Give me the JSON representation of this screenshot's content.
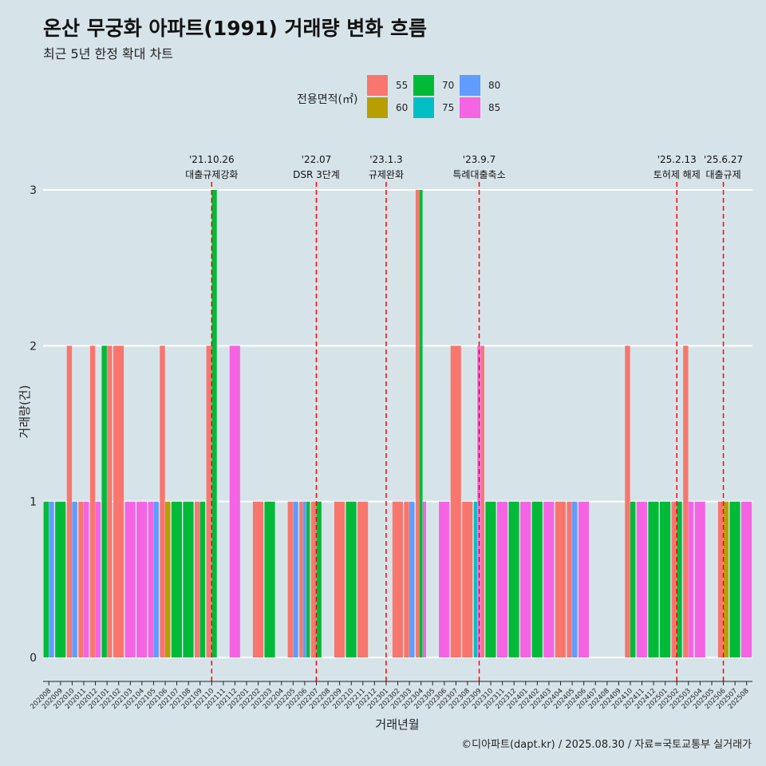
{
  "title": "온산 무궁화 아파트(1991) 거래량 변화 흐름",
  "subtitle": "최근 5년 한정 확대 차트",
  "credit": "©디아파트(dapt.kr) / 2025.08.30 / 자료=국토교통부 실거래가",
  "colors": {
    "55": "#f8766d",
    "60": "#b79f00",
    "70": "#00ba38",
    "75": "#00bfc4",
    "80": "#619cff",
    "85": "#f564e3",
    "vline": "#ff0000"
  },
  "chart_data": {
    "type": "bar",
    "xlabel": "거래년월",
    "ylabel": "거래량(건)",
    "ylim": [
      0,
      3
    ],
    "yticks": [
      0,
      1,
      2,
      3
    ],
    "legend": {
      "title": "전용면적(㎡)",
      "entries": [
        "55",
        "60",
        "70",
        "75",
        "80",
        "85"
      ],
      "position": "top"
    },
    "categories": [
      "202008",
      "202009",
      "202010",
      "202011",
      "202012",
      "202101",
      "202102",
      "202103",
      "202104",
      "202105",
      "202106",
      "202107",
      "202108",
      "202109",
      "202110",
      "202111",
      "202112",
      "202201",
      "202202",
      "202203",
      "202204",
      "202205",
      "202206",
      "202207",
      "202208",
      "202209",
      "202210",
      "202211",
      "202212",
      "202301",
      "202302",
      "202303",
      "202304",
      "202305",
      "202306",
      "202307",
      "202308",
      "202309",
      "202310",
      "202311",
      "202312",
      "202401",
      "202402",
      "202403",
      "202404",
      "202405",
      "202406",
      "202407",
      "202408",
      "202409",
      "202410",
      "202411",
      "202412",
      "202501",
      "202502",
      "202503",
      "202504",
      "202505",
      "202506",
      "202507",
      "202508"
    ],
    "bars": [
      {
        "month": "202008",
        "segments": [
          {
            "area": "70",
            "value": 1
          },
          {
            "area": "80",
            "value": 1
          }
        ]
      },
      {
        "month": "202009",
        "segments": [
          {
            "area": "70",
            "value": 1
          }
        ]
      },
      {
        "month": "202010",
        "segments": [
          {
            "area": "55",
            "value": 2
          },
          {
            "area": "80",
            "value": 1
          }
        ]
      },
      {
        "month": "202011",
        "segments": [
          {
            "area": "55",
            "value": 1
          },
          {
            "area": "85",
            "value": 1
          }
        ]
      },
      {
        "month": "202012",
        "segments": [
          {
            "area": "55",
            "value": 2
          },
          {
            "area": "85",
            "value": 1
          }
        ]
      },
      {
        "month": "202101",
        "segments": [
          {
            "area": "70",
            "value": 2
          },
          {
            "area": "55",
            "value": 2
          }
        ]
      },
      {
        "month": "202102",
        "segments": [
          {
            "area": "55",
            "value": 2
          }
        ]
      },
      {
        "month": "202103",
        "segments": [
          {
            "area": "85",
            "value": 1
          }
        ]
      },
      {
        "month": "202104",
        "segments": [
          {
            "area": "85",
            "value": 1
          }
        ]
      },
      {
        "month": "202105",
        "segments": [
          {
            "area": "85",
            "value": 1
          },
          {
            "area": "80",
            "value": 1
          }
        ]
      },
      {
        "month": "202106",
        "segments": [
          {
            "area": "55",
            "value": 2
          },
          {
            "area": "60",
            "value": 1
          }
        ]
      },
      {
        "month": "202107",
        "segments": [
          {
            "area": "70",
            "value": 1
          }
        ]
      },
      {
        "month": "202108",
        "segments": [
          {
            "area": "70",
            "value": 1
          }
        ]
      },
      {
        "month": "202109",
        "segments": [
          {
            "area": "55",
            "value": 1
          },
          {
            "area": "70",
            "value": 1
          }
        ]
      },
      {
        "month": "202110",
        "segments": [
          {
            "area": "55",
            "value": 2
          },
          {
            "area": "70",
            "value": 3
          }
        ]
      },
      {
        "month": "202111",
        "segments": []
      },
      {
        "month": "202112",
        "segments": [
          {
            "area": "85",
            "value": 2
          }
        ]
      },
      {
        "month": "202201",
        "segments": []
      },
      {
        "month": "202202",
        "segments": [
          {
            "area": "55",
            "value": 1
          }
        ]
      },
      {
        "month": "202203",
        "segments": [
          {
            "area": "70",
            "value": 1
          }
        ]
      },
      {
        "month": "202204",
        "segments": []
      },
      {
        "month": "202205",
        "segments": [
          {
            "area": "55",
            "value": 1
          },
          {
            "area": "80",
            "value": 1
          }
        ]
      },
      {
        "month": "202206",
        "segments": [
          {
            "area": "55",
            "value": 1
          },
          {
            "area": "80",
            "value": 1
          },
          {
            "area": "70",
            "value": 1
          }
        ]
      },
      {
        "month": "202207",
        "segments": [
          {
            "area": "55",
            "value": 1
          },
          {
            "area": "70",
            "value": 1
          }
        ]
      },
      {
        "month": "202208",
        "segments": []
      },
      {
        "month": "202209",
        "segments": [
          {
            "area": "55",
            "value": 1
          }
        ]
      },
      {
        "month": "202210",
        "segments": [
          {
            "area": "70",
            "value": 1
          }
        ]
      },
      {
        "month": "202211",
        "segments": [
          {
            "area": "55",
            "value": 1
          }
        ]
      },
      {
        "month": "202212",
        "segments": []
      },
      {
        "month": "202301",
        "segments": []
      },
      {
        "month": "202302",
        "segments": [
          {
            "area": "55",
            "value": 1
          }
        ]
      },
      {
        "month": "202303",
        "segments": [
          {
            "area": "55",
            "value": 1
          },
          {
            "area": "80",
            "value": 1
          }
        ]
      },
      {
        "month": "202304",
        "segments": [
          {
            "area": "55",
            "value": 3
          },
          {
            "area": "70",
            "value": 3
          },
          {
            "area": "85",
            "value": 1
          }
        ]
      },
      {
        "month": "202305",
        "segments": []
      },
      {
        "month": "202306",
        "segments": [
          {
            "area": "85",
            "value": 1
          }
        ]
      },
      {
        "month": "202307",
        "segments": [
          {
            "area": "55",
            "value": 2
          }
        ]
      },
      {
        "month": "202308",
        "segments": [
          {
            "area": "55",
            "value": 1
          }
        ]
      },
      {
        "month": "202309",
        "segments": [
          {
            "area": "75",
            "value": 1
          },
          {
            "area": "85",
            "value": 2
          },
          {
            "area": "55",
            "value": 2
          }
        ]
      },
      {
        "month": "202310",
        "segments": [
          {
            "area": "70",
            "value": 1
          }
        ]
      },
      {
        "month": "202311",
        "segments": [
          {
            "area": "85",
            "value": 1
          }
        ]
      },
      {
        "month": "202312",
        "segments": [
          {
            "area": "70",
            "value": 1
          }
        ]
      },
      {
        "month": "202401",
        "segments": [
          {
            "area": "85",
            "value": 1
          }
        ]
      },
      {
        "month": "202402",
        "segments": [
          {
            "area": "70",
            "value": 1
          }
        ]
      },
      {
        "month": "202403",
        "segments": [
          {
            "area": "85",
            "value": 1
          }
        ]
      },
      {
        "month": "202404",
        "segments": [
          {
            "area": "55",
            "value": 1
          }
        ]
      },
      {
        "month": "202405",
        "segments": [
          {
            "area": "55",
            "value": 1
          },
          {
            "area": "80",
            "value": 1
          }
        ]
      },
      {
        "month": "202406",
        "segments": [
          {
            "area": "85",
            "value": 1
          }
        ]
      },
      {
        "month": "202407",
        "segments": []
      },
      {
        "month": "202408",
        "segments": []
      },
      {
        "month": "202409",
        "segments": []
      },
      {
        "month": "202410",
        "segments": [
          {
            "area": "55",
            "value": 2
          },
          {
            "area": "70",
            "value": 1
          }
        ]
      },
      {
        "month": "202411",
        "segments": [
          {
            "area": "85",
            "value": 1
          }
        ]
      },
      {
        "month": "202412",
        "segments": [
          {
            "area": "70",
            "value": 1
          }
        ]
      },
      {
        "month": "202501",
        "segments": [
          {
            "area": "70",
            "value": 1
          }
        ]
      },
      {
        "month": "202502",
        "segments": [
          {
            "area": "55",
            "value": 1
          },
          {
            "area": "70",
            "value": 1
          }
        ]
      },
      {
        "month": "202503",
        "segments": [
          {
            "area": "55",
            "value": 2
          },
          {
            "area": "85",
            "value": 1
          }
        ]
      },
      {
        "month": "202504",
        "segments": [
          {
            "area": "85",
            "value": 1
          }
        ]
      },
      {
        "month": "202505",
        "segments": []
      },
      {
        "month": "202506",
        "segments": [
          {
            "area": "55",
            "value": 1
          },
          {
            "area": "60",
            "value": 1
          }
        ]
      },
      {
        "month": "202507",
        "segments": [
          {
            "area": "70",
            "value": 1
          }
        ]
      },
      {
        "month": "202508",
        "segments": [
          {
            "area": "85",
            "value": 1
          }
        ]
      }
    ],
    "annotations": [
      {
        "date": "'21.10.26",
        "label": "대출규제강화",
        "x": "202110"
      },
      {
        "date": "'22.07",
        "label": "DSR 3단계",
        "x": "202207"
      },
      {
        "date": "'23.1.3",
        "label": "규제완화",
        "x": "202301"
      },
      {
        "date": "'23.9.7",
        "label": "특례대출축소",
        "x": "202309"
      },
      {
        "date": "'25.2.13",
        "label": "토허제 해제",
        "x": "202502"
      },
      {
        "date": "'25.6.27",
        "label": "대출규제",
        "x": "202506"
      }
    ]
  }
}
